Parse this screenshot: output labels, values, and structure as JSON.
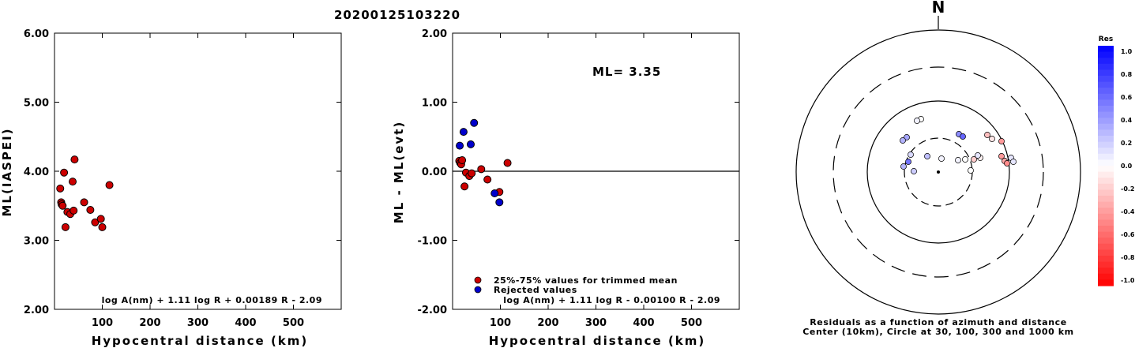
{
  "title": "20200125103220",
  "chart_data": [
    {
      "type": "scatter",
      "xlabel": "Hypocentral distance (km)",
      "ylabel": "ML(IASPEI)",
      "xlim": [
        0,
        600
      ],
      "ylim": [
        2.0,
        6.0
      ],
      "xticks": [
        "100",
        "200",
        "300",
        "400",
        "500"
      ],
      "yticks": [
        "2.00",
        "3.00",
        "4.00",
        "5.00",
        "6.00"
      ],
      "formula": "log A(nm) + 1.11 log R + 0.00189 R - 2.09",
      "marker_color": "#cc0000",
      "points": [
        {
          "x": 12,
          "y": 3.75
        },
        {
          "x": 14,
          "y": 3.55
        },
        {
          "x": 15,
          "y": 3.52
        },
        {
          "x": 17,
          "y": 3.5
        },
        {
          "x": 20,
          "y": 3.98
        },
        {
          "x": 23,
          "y": 3.19
        },
        {
          "x": 27,
          "y": 3.41
        },
        {
          "x": 33,
          "y": 3.38
        },
        {
          "x": 38,
          "y": 3.85
        },
        {
          "x": 40,
          "y": 3.43
        },
        {
          "x": 42,
          "y": 4.17
        },
        {
          "x": 62,
          "y": 3.55
        },
        {
          "x": 75,
          "y": 3.44
        },
        {
          "x": 85,
          "y": 3.26
        },
        {
          "x": 97,
          "y": 3.31
        },
        {
          "x": 100,
          "y": 3.19
        },
        {
          "x": 115,
          "y": 3.8
        }
      ]
    },
    {
      "type": "scatter",
      "xlabel": "Hypocentral distance (km)",
      "ylabel": "ML - ML(evt)",
      "xlim": [
        0,
        600
      ],
      "ylim": [
        -2.0,
        2.0
      ],
      "xticks": [
        "100",
        "200",
        "300",
        "400",
        "500"
      ],
      "yticks": [
        "-2.00",
        "-1.00",
        "0.00",
        "1.00",
        "2.00"
      ],
      "ml_text": "ML= 3.35",
      "formula": "log A(nm) + 1.11 log R - 0.00100 R - 2.09",
      "legend": [
        {
          "label": "25%-75% values for trimmed mean",
          "color": "#cc0000"
        },
        {
          "label": "Rejected values",
          "color": "#0000cc"
        }
      ],
      "trimmed": [
        {
          "x": 14,
          "y": 0.15
        },
        {
          "x": 16,
          "y": 0.12
        },
        {
          "x": 18,
          "y": 0.1
        },
        {
          "x": 20,
          "y": 0.16
        },
        {
          "x": 25,
          "y": -0.22
        },
        {
          "x": 28,
          "y": -0.02
        },
        {
          "x": 35,
          "y": -0.07
        },
        {
          "x": 40,
          "y": -0.03
        },
        {
          "x": 60,
          "y": 0.03
        },
        {
          "x": 73,
          "y": -0.12
        },
        {
          "x": 98,
          "y": -0.3
        },
        {
          "x": 115,
          "y": 0.12
        }
      ],
      "rejected": [
        {
          "x": 15,
          "y": 0.37
        },
        {
          "x": 23,
          "y": 0.57
        },
        {
          "x": 38,
          "y": 0.39
        },
        {
          "x": 45,
          "y": 0.7
        },
        {
          "x": 88,
          "y": -0.32
        },
        {
          "x": 98,
          "y": -0.45
        }
      ]
    },
    {
      "type": "polar-scatter",
      "north_label": "N",
      "caption_line1": "Residuals as a function of azimuth and distance",
      "caption_line2": "Center (10km), Circle at 30, 100, 300 and 1000 km",
      "colorbar_title": "Res",
      "colorbar_ticks": [
        "1.0",
        "0.8",
        "0.6",
        "0.4",
        "0.2",
        "0.0",
        "-0.2",
        "-0.4",
        "-0.6",
        "-0.8",
        "-1.0"
      ],
      "points": [
        {
          "dx": -22,
          "dy": -67,
          "res": 0.0
        },
        {
          "dx": -27,
          "dy": -65,
          "res": 0.05
        },
        {
          "dx": -40,
          "dy": -44,
          "res": 0.35
        },
        {
          "dx": -45,
          "dy": -40,
          "res": 0.3
        },
        {
          "dx": 26,
          "dy": -48,
          "res": 0.45
        },
        {
          "dx": 31,
          "dy": -45,
          "res": 0.6
        },
        {
          "dx": 62,
          "dy": -47,
          "res": -0.25
        },
        {
          "dx": 68,
          "dy": -42,
          "res": -0.1
        },
        {
          "dx": 80,
          "dy": -39,
          "res": -0.4
        },
        {
          "dx": -35,
          "dy": -22,
          "res": 0.15
        },
        {
          "dx": -14,
          "dy": -20,
          "res": 0.25
        },
        {
          "dx": 4,
          "dy": -17,
          "res": 0.05
        },
        {
          "dx": 25,
          "dy": -15,
          "res": 0.05
        },
        {
          "dx": 34,
          "dy": -16,
          "res": 0.0
        },
        {
          "dx": 45,
          "dy": -16,
          "res": -0.2
        },
        {
          "dx": 53,
          "dy": -18,
          "res": -0.05
        },
        {
          "dx": 50,
          "dy": -21,
          "res": 0.1
        },
        {
          "dx": 41,
          "dy": -2,
          "res": 0.0
        },
        {
          "dx": -38,
          "dy": -13,
          "res": 0.55
        },
        {
          "dx": -44,
          "dy": -7,
          "res": 0.3
        },
        {
          "dx": -31,
          "dy": -1,
          "res": 0.2
        },
        {
          "dx": 80,
          "dy": -20,
          "res": -0.4
        },
        {
          "dx": 84,
          "dy": -14,
          "res": -0.35
        },
        {
          "dx": 87,
          "dy": -11,
          "res": -0.45
        },
        {
          "dx": 92,
          "dy": -18,
          "res": 0.1
        },
        {
          "dx": 95,
          "dy": -13,
          "res": 0.1
        }
      ]
    }
  ]
}
